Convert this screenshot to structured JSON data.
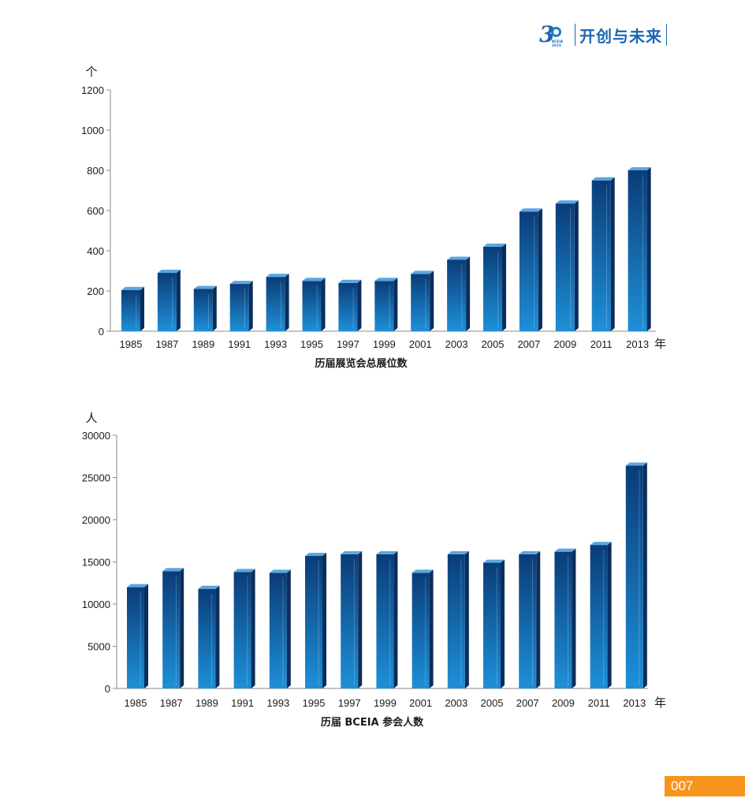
{
  "header": {
    "logo_number": "3",
    "logo_sub": "BCEIA 2015",
    "motto": "开创与未来"
  },
  "page_number": "007",
  "colors": {
    "bar_top": "#0a3c78",
    "bar_bottom": "#1e90d8",
    "bar_side": "#0a2e5c",
    "bar_cap": "#5aa6e0",
    "badge": "#f7941d",
    "brand": "#1b66b3"
  },
  "chart_data": [
    {
      "type": "bar",
      "ylabel": "个",
      "xunit": "年",
      "title": "历届展览会总展位数",
      "ylim": [
        0,
        1200
      ],
      "yticks": [
        0,
        200,
        400,
        600,
        800,
        1000,
        1200
      ],
      "categories": [
        "1985",
        "1987",
        "1989",
        "1991",
        "1993",
        "1995",
        "1997",
        "1999",
        "2001",
        "2003",
        "2005",
        "2007",
        "2009",
        "2011",
        "2013"
      ],
      "values": [
        205,
        290,
        210,
        235,
        270,
        250,
        240,
        250,
        285,
        355,
        420,
        595,
        635,
        750,
        800
      ]
    },
    {
      "type": "bar",
      "ylabel": "人",
      "xunit": "年",
      "title": "历届 BCEIA 参会人数",
      "ylim": [
        0,
        30000
      ],
      "yticks": [
        0,
        5000,
        10000,
        15000,
        20000,
        25000,
        30000
      ],
      "categories": [
        "1985",
        "1987",
        "1989",
        "1991",
        "1993",
        "1995",
        "1997",
        "1999",
        "2001",
        "2003",
        "2005",
        "2007",
        "2009",
        "2011",
        "2013"
      ],
      "values": [
        12000,
        13900,
        11800,
        13800,
        13700,
        15700,
        15900,
        15900,
        13700,
        15900,
        14900,
        15900,
        16200,
        17000,
        26400
      ]
    }
  ]
}
